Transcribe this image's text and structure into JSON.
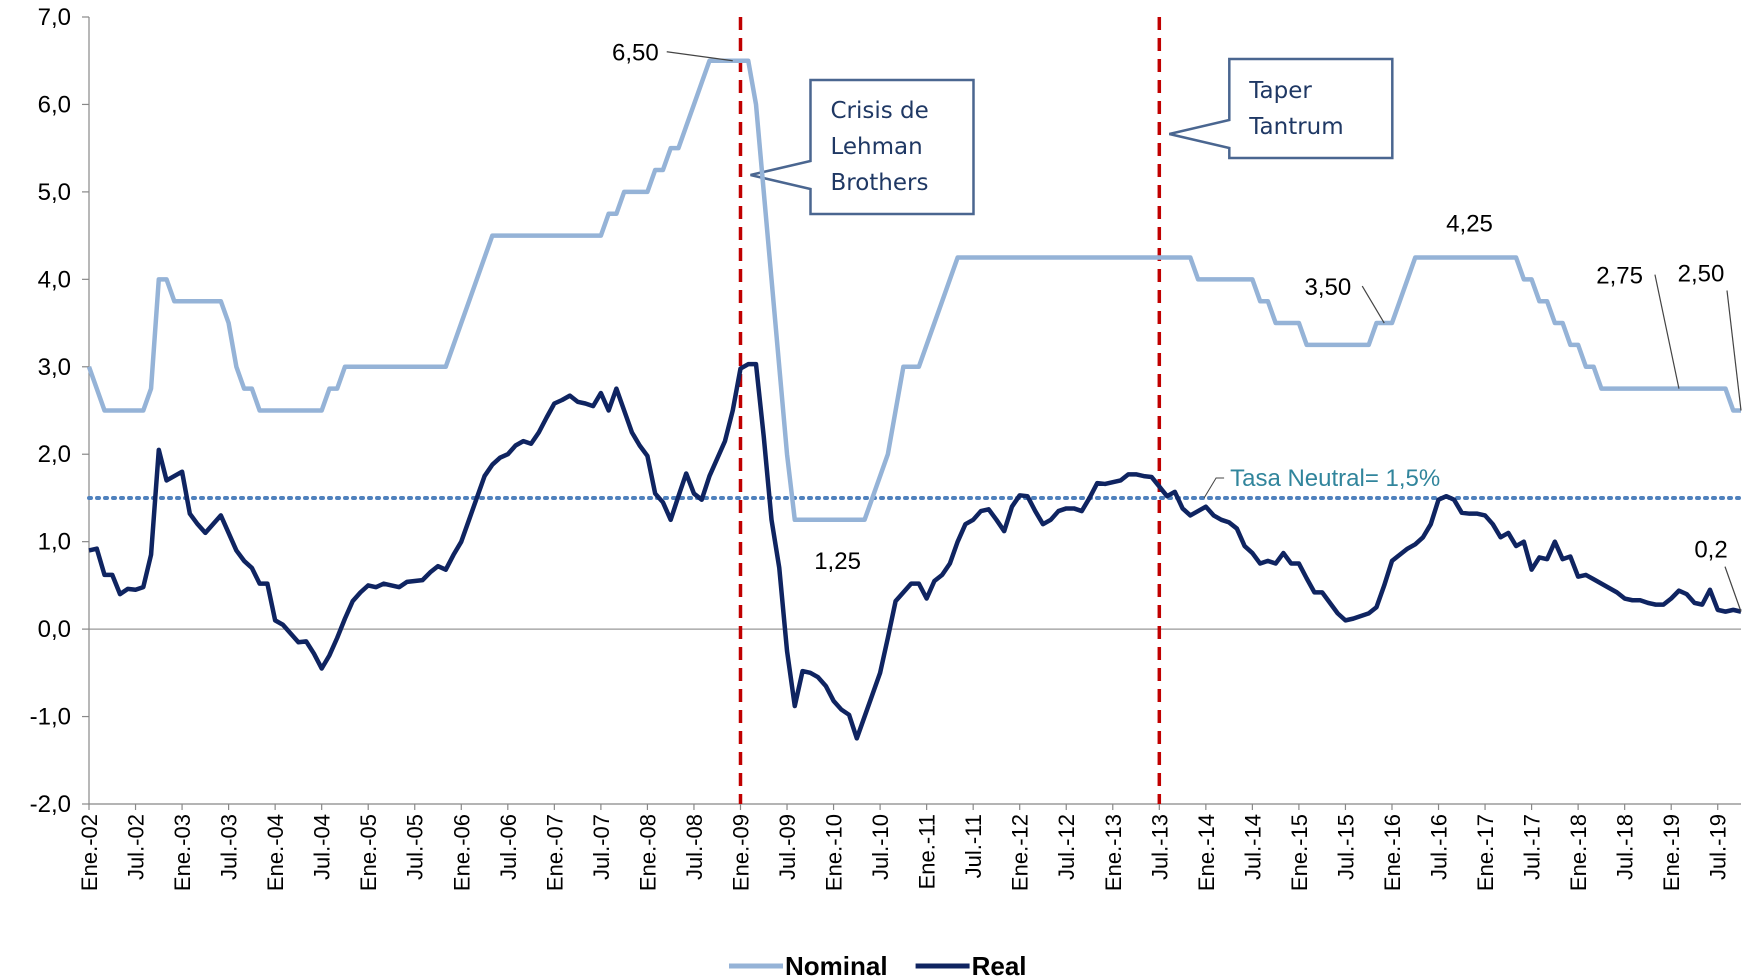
{
  "chart_data": {
    "type": "line",
    "categories": [
      "Ene.-02",
      null,
      null,
      null,
      null,
      null,
      "Jul.-02",
      null,
      null,
      null,
      null,
      null,
      "Ene.-03",
      null,
      null,
      null,
      null,
      null,
      "Jul.-03",
      null,
      null,
      null,
      null,
      null,
      "Ene.-04",
      null,
      null,
      null,
      null,
      null,
      "Jul.-04",
      null,
      null,
      null,
      null,
      null,
      "Ene.-05",
      null,
      null,
      null,
      null,
      null,
      "Jul.-05",
      null,
      null,
      null,
      null,
      null,
      "Ene.-06",
      null,
      null,
      null,
      null,
      null,
      "Jul.-06",
      null,
      null,
      null,
      null,
      null,
      "Ene.-07",
      null,
      null,
      null,
      null,
      null,
      "Jul.-07",
      null,
      null,
      null,
      null,
      null,
      "Ene.-08",
      null,
      null,
      null,
      null,
      null,
      "Jul.-08",
      null,
      null,
      null,
      null,
      null,
      "Ene.-09",
      null,
      null,
      null,
      null,
      null,
      "Jul.-09",
      null,
      null,
      null,
      null,
      null,
      "Ene.-10",
      null,
      null,
      null,
      null,
      null,
      "Jul.-10",
      null,
      null,
      null,
      null,
      null,
      "Ene.-11",
      null,
      null,
      null,
      null,
      null,
      "Jul.-11",
      null,
      null,
      null,
      null,
      null,
      "Ene.-12",
      null,
      null,
      null,
      null,
      null,
      "Jul.-12",
      null,
      null,
      null,
      null,
      null,
      "Ene.-13",
      null,
      null,
      null,
      null,
      null,
      "Jul.-13",
      null,
      null,
      null,
      null,
      null,
      "Ene.-14",
      null,
      null,
      null,
      null,
      null,
      "Jul.-14",
      null,
      null,
      null,
      null,
      null,
      "Ene.-15",
      null,
      null,
      null,
      null,
      null,
      "Jul.-15",
      null,
      null,
      null,
      null,
      null,
      "Ene.-16",
      null,
      null,
      null,
      null,
      null,
      "Jul.-16",
      null,
      null,
      null,
      null,
      null,
      "Ene.-17",
      null,
      null,
      null,
      null,
      null,
      "Jul.-17",
      null,
      null,
      null,
      null,
      null,
      "Ene.-18",
      null,
      null,
      null,
      null,
      null,
      "Jul.-18",
      null,
      null,
      null,
      null,
      null,
      "Ene.-19",
      null,
      null,
      null,
      null,
      null,
      "Jul.-19",
      null,
      null,
      null
    ],
    "series": [
      {
        "name": "Nominal",
        "color": "#95b3d7",
        "values": [
          3.0,
          2.75,
          2.5,
          2.5,
          2.5,
          2.5,
          2.5,
          2.5,
          2.75,
          4.0,
          4.0,
          3.75,
          3.75,
          3.75,
          3.75,
          3.75,
          3.75,
          3.75,
          3.5,
          3.0,
          2.75,
          2.75,
          2.5,
          2.5,
          2.5,
          2.5,
          2.5,
          2.5,
          2.5,
          2.5,
          2.5,
          2.75,
          2.75,
          3.0,
          3.0,
          3.0,
          3.0,
          3.0,
          3.0,
          3.0,
          3.0,
          3.0,
          3.0,
          3.0,
          3.0,
          3.0,
          3.0,
          3.25,
          3.5,
          3.75,
          4.0,
          4.25,
          4.5,
          4.5,
          4.5,
          4.5,
          4.5,
          4.5,
          4.5,
          4.5,
          4.5,
          4.5,
          4.5,
          4.5,
          4.5,
          4.5,
          4.5,
          4.75,
          4.75,
          5.0,
          5.0,
          5.0,
          5.0,
          5.25,
          5.25,
          5.5,
          5.5,
          5.75,
          6.0,
          6.25,
          6.5,
          6.5,
          6.5,
          6.5,
          6.5,
          6.5,
          6.0,
          5.0,
          4.0,
          3.0,
          2.0,
          1.25,
          1.25,
          1.25,
          1.25,
          1.25,
          1.25,
          1.25,
          1.25,
          1.25,
          1.25,
          1.5,
          1.75,
          2.0,
          2.5,
          3.0,
          3.0,
          3.0,
          3.25,
          3.5,
          3.75,
          4.0,
          4.25,
          4.25,
          4.25,
          4.25,
          4.25,
          4.25,
          4.25,
          4.25,
          4.25,
          4.25,
          4.25,
          4.25,
          4.25,
          4.25,
          4.25,
          4.25,
          4.25,
          4.25,
          4.25,
          4.25,
          4.25,
          4.25,
          4.25,
          4.25,
          4.25,
          4.25,
          4.25,
          4.25,
          4.25,
          4.25,
          4.25,
          4.0,
          4.0,
          4.0,
          4.0,
          4.0,
          4.0,
          4.0,
          4.0,
          3.75,
          3.75,
          3.5,
          3.5,
          3.5,
          3.5,
          3.25,
          3.25,
          3.25,
          3.25,
          3.25,
          3.25,
          3.25,
          3.25,
          3.25,
          3.5,
          3.5,
          3.5,
          3.75,
          4.0,
          4.25,
          4.25,
          4.25,
          4.25,
          4.25,
          4.25,
          4.25,
          4.25,
          4.25,
          4.25,
          4.25,
          4.25,
          4.25,
          4.25,
          4.0,
          4.0,
          3.75,
          3.75,
          3.5,
          3.5,
          3.25,
          3.25,
          3.0,
          3.0,
          2.75,
          2.75,
          2.75,
          2.75,
          2.75,
          2.75,
          2.75,
          2.75,
          2.75,
          2.75,
          2.75,
          2.75,
          2.75,
          2.75,
          2.75,
          2.75,
          2.75,
          2.5,
          2.5
        ],
        "value_labels": [
          null,
          null,
          null,
          null,
          null,
          null,
          null,
          null,
          null,
          null,
          null,
          null,
          null,
          null,
          null,
          null,
          null,
          null,
          null,
          null,
          null,
          null,
          null,
          null,
          null,
          null,
          null,
          null,
          null,
          null,
          null,
          null,
          null,
          null,
          null,
          null,
          null,
          null,
          null,
          null,
          null,
          null,
          null,
          null,
          null,
          null,
          null,
          null,
          null,
          null,
          null,
          null,
          null,
          null,
          null,
          null,
          null,
          null,
          null,
          null,
          null,
          null,
          null,
          null,
          null,
          null,
          null,
          null,
          null,
          null,
          null,
          null,
          null,
          null,
          null,
          null,
          null,
          null,
          null,
          null,
          null,
          null,
          null,
          "6,50",
          null,
          null,
          null,
          null,
          null,
          null,
          null,
          null,
          null,
          null,
          null,
          null,
          "1,25",
          null,
          null,
          null,
          null,
          null,
          null,
          null,
          null,
          null,
          null,
          null,
          null,
          null,
          null,
          null,
          null,
          null,
          null,
          null,
          null,
          null,
          null,
          null,
          null,
          null,
          null,
          null,
          null,
          null,
          null,
          null,
          null,
          null,
          null,
          null,
          null,
          null,
          null,
          null,
          null,
          null,
          null,
          null,
          null,
          null,
          null,
          null,
          null,
          null,
          null,
          null,
          null,
          null,
          null,
          null,
          null,
          null,
          null,
          null,
          null,
          null,
          null,
          null,
          null,
          null,
          null,
          null,
          null,
          null,
          null,
          "3,50",
          null,
          null,
          null,
          null,
          null,
          null,
          null,
          null,
          null,
          null,
          "4,25",
          null,
          null,
          null,
          null,
          null,
          null,
          null,
          null,
          null,
          null,
          null,
          null,
          null,
          null,
          null,
          null,
          null,
          null,
          null,
          null,
          null,
          null,
          null,
          null,
          null,
          null,
          "2,75",
          null,
          null,
          null,
          null,
          null,
          null,
          null,
          "2,50"
        ]
      },
      {
        "name": "Real",
        "color": "#0f2461",
        "values": [
          0.9,
          0.92,
          0.62,
          0.62,
          0.4,
          0.46,
          0.45,
          0.48,
          0.85,
          2.05,
          1.7,
          1.75,
          1.8,
          1.32,
          1.2,
          1.1,
          1.2,
          1.3,
          1.1,
          0.9,
          0.78,
          0.7,
          0.52,
          0.52,
          0.1,
          0.05,
          -0.05,
          -0.15,
          -0.14,
          -0.28,
          -0.45,
          -0.3,
          -0.1,
          0.12,
          0.32,
          0.42,
          0.5,
          0.48,
          0.52,
          0.5,
          0.48,
          0.54,
          0.55,
          0.56,
          0.65,
          0.72,
          0.68,
          0.85,
          1.0,
          1.25,
          1.5,
          1.75,
          1.88,
          1.96,
          2.0,
          2.1,
          2.15,
          2.12,
          2.25,
          2.42,
          2.58,
          2.62,
          2.67,
          2.6,
          2.58,
          2.55,
          2.7,
          2.5,
          2.75,
          2.5,
          2.25,
          2.1,
          1.98,
          1.55,
          1.45,
          1.25,
          1.52,
          1.78,
          1.55,
          1.48,
          1.75,
          1.95,
          2.15,
          2.5,
          2.98,
          3.03,
          3.03,
          2.2,
          1.25,
          0.7,
          -0.25,
          -0.88,
          -0.48,
          -0.5,
          -0.55,
          -0.65,
          -0.82,
          -0.92,
          -0.98,
          -1.25,
          -1.0,
          -0.75,
          -0.5,
          -0.1,
          0.32,
          0.42,
          0.52,
          0.52,
          0.35,
          0.55,
          0.62,
          0.75,
          1.0,
          1.2,
          1.25,
          1.35,
          1.37,
          1.25,
          1.12,
          1.4,
          1.53,
          1.52,
          1.35,
          1.2,
          1.25,
          1.35,
          1.38,
          1.38,
          1.35,
          1.5,
          1.67,
          1.66,
          1.68,
          1.7,
          1.77,
          1.77,
          1.75,
          1.74,
          1.63,
          1.52,
          1.57,
          1.38,
          1.3,
          1.35,
          1.4,
          1.3,
          1.25,
          1.22,
          1.15,
          0.95,
          0.87,
          0.75,
          0.78,
          0.75,
          0.87,
          0.75,
          0.75,
          0.58,
          0.42,
          0.42,
          0.3,
          0.18,
          0.1,
          0.12,
          0.15,
          0.18,
          0.25,
          0.5,
          0.78,
          0.85,
          0.92,
          0.97,
          1.05,
          1.2,
          1.48,
          1.52,
          1.48,
          1.33,
          1.32,
          1.32,
          1.3,
          1.2,
          1.05,
          1.1,
          0.95,
          1.0,
          0.68,
          0.82,
          0.8,
          1.0,
          0.8,
          0.83,
          0.6,
          0.62,
          0.57,
          0.52,
          0.47,
          0.42,
          0.35,
          0.33,
          0.33,
          0.3,
          0.28,
          0.28,
          0.35,
          0.44,
          0.4,
          0.3,
          0.28,
          0.45,
          0.22,
          0.2,
          0.22,
          0.2
        ],
        "value_labels": [
          null,
          null,
          null,
          null,
          null,
          null,
          null,
          null,
          null,
          null,
          null,
          null,
          null,
          null,
          null,
          null,
          null,
          null,
          null,
          null,
          null,
          null,
          null,
          null,
          null,
          null,
          null,
          null,
          null,
          null,
          null,
          null,
          null,
          null,
          null,
          null,
          null,
          null,
          null,
          null,
          null,
          null,
          null,
          null,
          null,
          null,
          null,
          null,
          null,
          null,
          null,
          null,
          null,
          null,
          null,
          null,
          null,
          null,
          null,
          null,
          null,
          null,
          null,
          null,
          null,
          null,
          null,
          null,
          null,
          null,
          null,
          null,
          null,
          null,
          null,
          null,
          null,
          null,
          null,
          null,
          null,
          null,
          null,
          null,
          null,
          null,
          null,
          null,
          null,
          null,
          null,
          null,
          null,
          null,
          null,
          null,
          null,
          null,
          null,
          null,
          null,
          null,
          null,
          null,
          null,
          null,
          null,
          null,
          null,
          null,
          null,
          null,
          null,
          null,
          null,
          null,
          null,
          null,
          null,
          null,
          null,
          null,
          null,
          null,
          null,
          null,
          null,
          null,
          null,
          null,
          null,
          null,
          null,
          null,
          null,
          null,
          null,
          null,
          null,
          null,
          null,
          null,
          null,
          null,
          null,
          null,
          null,
          null,
          null,
          null,
          null,
          null,
          null,
          null,
          null,
          null,
          null,
          null,
          null,
          null,
          null,
          null,
          null,
          null,
          null,
          null,
          null,
          null,
          null,
          null,
          null,
          null,
          null,
          null,
          null,
          null,
          null,
          null,
          null,
          null,
          null,
          null,
          null,
          null,
          null,
          null,
          null,
          null,
          null,
          null,
          null,
          null,
          null,
          null,
          null,
          null,
          null,
          null,
          null,
          null,
          null,
          null,
          null,
          null,
          null,
          null,
          null,
          null,
          null,
          null,
          null,
          null,
          null,
          "0,2"
        ]
      }
    ],
    "ylim": [
      -2,
      7
    ],
    "yticks": [
      {
        "value": -2,
        "label": "-2,0"
      },
      {
        "value": -1,
        "label": "-1,0"
      },
      {
        "value": 0,
        "label": "0,0"
      },
      {
        "value": 1,
        "label": "1,0"
      },
      {
        "value": 2,
        "label": "2,0"
      },
      {
        "value": 3,
        "label": "3,0"
      },
      {
        "value": 4,
        "label": "4,0"
      },
      {
        "value": 5,
        "label": "5,0"
      },
      {
        "value": 6,
        "label": "6,0"
      },
      {
        "value": 7,
        "label": "7,0"
      }
    ],
    "hlines": [
      {
        "value": 1.5,
        "label": "Tasa Neutral= 1,5%",
        "color": "#4f81bd"
      }
    ],
    "vlines": [
      {
        "x": "Ene.-09",
        "text": "Crisis de Lehman Brothers",
        "color": "#c00000"
      },
      {
        "x": "Jul.-13",
        "text": "Taper Tantrum",
        "color": "#c00000"
      }
    ],
    "legend": "bottom"
  }
}
